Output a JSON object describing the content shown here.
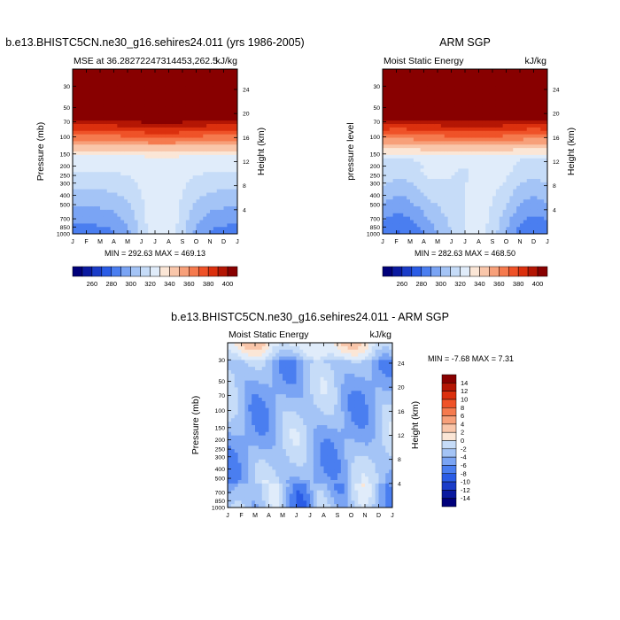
{
  "palette": {
    "mse": [
      "#00007a",
      "#0a1aa0",
      "#1a3cc8",
      "#2a5ce6",
      "#4a7ef0",
      "#7aa4f4",
      "#a4c4f6",
      "#c6dcf8",
      "#e0ecfa",
      "#fbe6d6",
      "#f9c6aa",
      "#f7a07a",
      "#f57a4e",
      "#ef5228",
      "#db300e",
      "#b41604",
      "#880000"
    ],
    "diff": [
      "#00007a",
      "#0a1aa0",
      "#1a3cc8",
      "#2a5ce6",
      "#4a7ef0",
      "#7aa4f4",
      "#a4c4f6",
      "#c6dcf8",
      "#e0ecfa",
      "#fbe6d6",
      "#f9c6aa",
      "#f7a07a",
      "#f57a4e",
      "#ef5228",
      "#db300e",
      "#b41604",
      "#880000"
    ]
  },
  "chart_data": [
    {
      "id": "model",
      "type": "heatmap",
      "main_title": "b.e13.BHISTC5CN.ne30_g16.sehires24.011 (yrs 1986-2005)",
      "title_left": "MSE at 36.28272247314453,262.5",
      "title_right": "kJ/kg",
      "ylabel": "Pressure (mb)",
      "ylabel_right": "Height (km)",
      "x_ticks": [
        "J",
        "F",
        "M",
        "A",
        "M",
        "J",
        "J",
        "A",
        "S",
        "O",
        "N",
        "D",
        "J"
      ],
      "y_ticks": [
        30,
        50,
        70,
        100,
        150,
        200,
        250,
        300,
        400,
        500,
        700,
        850,
        1000
      ],
      "y_range_mb": [
        20,
        1000
      ],
      "right_ticks": [
        4,
        8,
        12,
        16,
        20,
        24
      ],
      "stats": "MIN = 292.63 MAX = 469.13",
      "colorbar": {
        "labels": [
          "260",
          "280",
          "300",
          "320",
          "340",
          "360",
          "380",
          "400"
        ],
        "level_min": 250,
        "level_step": 10
      }
    },
    {
      "id": "obs",
      "type": "heatmap",
      "main_title": "ARM SGP",
      "title_left": "Moist Static Energy",
      "title_right": "kJ/kg",
      "ylabel": "pressure level",
      "ylabel_right": "Height (km)",
      "x_ticks": [
        "J",
        "F",
        "M",
        "A",
        "M",
        "J",
        "J",
        "A",
        "S",
        "O",
        "N",
        "D",
        "J"
      ],
      "y_ticks": [
        30,
        50,
        70,
        100,
        150,
        200,
        250,
        300,
        400,
        500,
        700,
        850,
        1000
      ],
      "y_range_mb": [
        20,
        1000
      ],
      "right_ticks": [
        4,
        8,
        12,
        16,
        20,
        24
      ],
      "stats": "MIN = 282.63 MAX = 468.50",
      "colorbar": {
        "labels": [
          "260",
          "280",
          "300",
          "320",
          "340",
          "360",
          "380",
          "400"
        ],
        "level_min": 250,
        "level_step": 10
      }
    },
    {
      "id": "diff",
      "type": "heatmap",
      "main_title": "b.e13.BHISTC5CN.ne30_g16.sehires24.011 - ARM SGP",
      "title_left": "Moist Static Energy",
      "title_right": "kJ/kg",
      "ylabel": "Pressure (mb)",
      "ylabel_right": "Height (km)",
      "x_ticks": [
        "J",
        "F",
        "M",
        "A",
        "M",
        "J",
        "J",
        "A",
        "S",
        "O",
        "N",
        "D",
        "J"
      ],
      "y_ticks": [
        30,
        50,
        70,
        100,
        150,
        200,
        250,
        300,
        400,
        500,
        700,
        850,
        1000
      ],
      "y_range_mb": [
        20,
        1000
      ],
      "right_ticks": [
        4,
        8,
        12,
        16,
        20,
        24
      ],
      "stats": "MIN =  -7.68 MAX =   7.31",
      "colorbar": {
        "labels": [
          "14",
          "12",
          "10",
          "8",
          "6",
          "4",
          "2",
          "0",
          "-2",
          "-4",
          "-6",
          "-8",
          "-10",
          "-12",
          "-14"
        ],
        "level_min": -16,
        "level_step": 2
      }
    }
  ]
}
